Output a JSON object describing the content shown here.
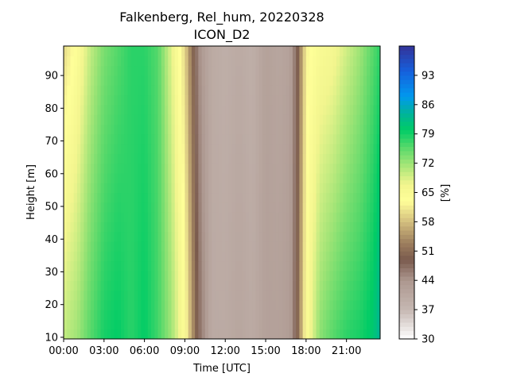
{
  "chart_data": {
    "type": "heatmap",
    "title": "Falkenberg, Rel_hum, 20220328",
    "subtitle": "ICON_D2",
    "xlabel": "Time [UTC]",
    "ylabel": "Height [m]",
    "colorbar_label": "[%]",
    "x_ticks": [
      {
        "value": 0,
        "label": "00:00"
      },
      {
        "value": 3,
        "label": "03:00"
      },
      {
        "value": 6,
        "label": "06:00"
      },
      {
        "value": 9,
        "label": "09:00"
      },
      {
        "value": 12,
        "label": "12:00"
      },
      {
        "value": 15,
        "label": "15:00"
      },
      {
        "value": 18,
        "label": "18:00"
      },
      {
        "value": 21,
        "label": "21:00"
      }
    ],
    "y_ticks": [
      {
        "value": 10,
        "label": "10"
      },
      {
        "value": 20,
        "label": "20"
      },
      {
        "value": 30,
        "label": "30"
      },
      {
        "value": 40,
        "label": "40"
      },
      {
        "value": 50,
        "label": "50"
      },
      {
        "value": 60,
        "label": "60"
      },
      {
        "value": 70,
        "label": "70"
      },
      {
        "value": 80,
        "label": "80"
      },
      {
        "value": 90,
        "label": "90"
      }
    ],
    "colorbar_ticks": [
      {
        "value": 30,
        "label": "30"
      },
      {
        "value": 37,
        "label": "37"
      },
      {
        "value": 44,
        "label": "44"
      },
      {
        "value": 51,
        "label": "51"
      },
      {
        "value": 58,
        "label": "58"
      },
      {
        "value": 65,
        "label": "65"
      },
      {
        "value": 72,
        "label": "72"
      },
      {
        "value": 79,
        "label": "79"
      },
      {
        "value": 86,
        "label": "86"
      },
      {
        "value": 93,
        "label": "93"
      }
    ],
    "xlim": [
      0,
      23.5
    ],
    "ylim": [
      9.5,
      99
    ],
    "clim": [
      30,
      100
    ],
    "colormap": "terrain_r",
    "grid": false,
    "time_hours": [
      0,
      1,
      2,
      3,
      4,
      5,
      6,
      7,
      8,
      9,
      9.5,
      10,
      10.5,
      11,
      12,
      13,
      14,
      15,
      16,
      16.8,
      17.3,
      18,
      19,
      20,
      21,
      22,
      23,
      23.5
    ],
    "humidity_low": [
      70,
      72,
      76,
      79,
      80,
      78,
      80,
      77,
      72,
      64,
      56,
      48,
      44,
      40,
      40,
      41,
      40,
      42,
      42,
      43,
      49,
      64,
      73,
      76,
      78,
      79,
      81,
      84
    ],
    "humidity_high": [
      60,
      64,
      70,
      74,
      76,
      78,
      78,
      76,
      68,
      60,
      52,
      45,
      42,
      40,
      39,
      40,
      39,
      42,
      41,
      42,
      48,
      62,
      65,
      66,
      69,
      72,
      76,
      78
    ]
  }
}
